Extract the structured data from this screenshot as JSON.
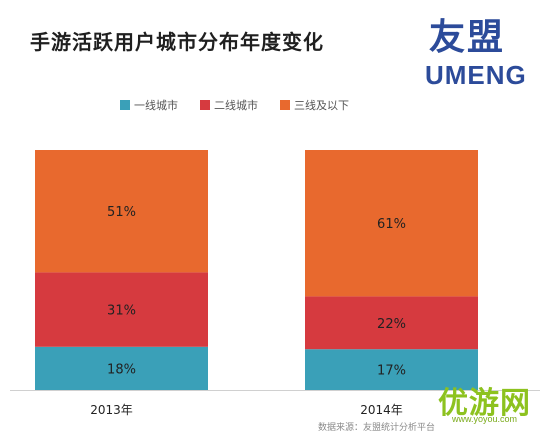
{
  "title": "手游活跃用户城市分布年度变化",
  "logo": {
    "cn": "友盟",
    "en": "UMENG"
  },
  "source": "数据来源：友盟统计分析平台",
  "watermark": {
    "text": "优游网",
    "url": "www.yoyou.com"
  },
  "chart_data": {
    "type": "bar",
    "stacked": true,
    "categories": [
      "2013年",
      "2014年"
    ],
    "series": [
      {
        "name": "一线城市",
        "values": [
          18,
          17
        ],
        "color": "#3aa0b8"
      },
      {
        "name": "二线城市",
        "values": [
          31,
          22
        ],
        "color": "#d63a3f"
      },
      {
        "name": "三线及以下",
        "values": [
          51,
          61
        ],
        "color": "#e8692e"
      }
    ],
    "value_labels": [
      [
        "18%",
        "17%"
      ],
      [
        "31%",
        "22%"
      ],
      [
        "51%",
        "61%"
      ]
    ],
    "ylim": [
      0,
      100
    ],
    "grid": false,
    "legend_position": "top"
  }
}
